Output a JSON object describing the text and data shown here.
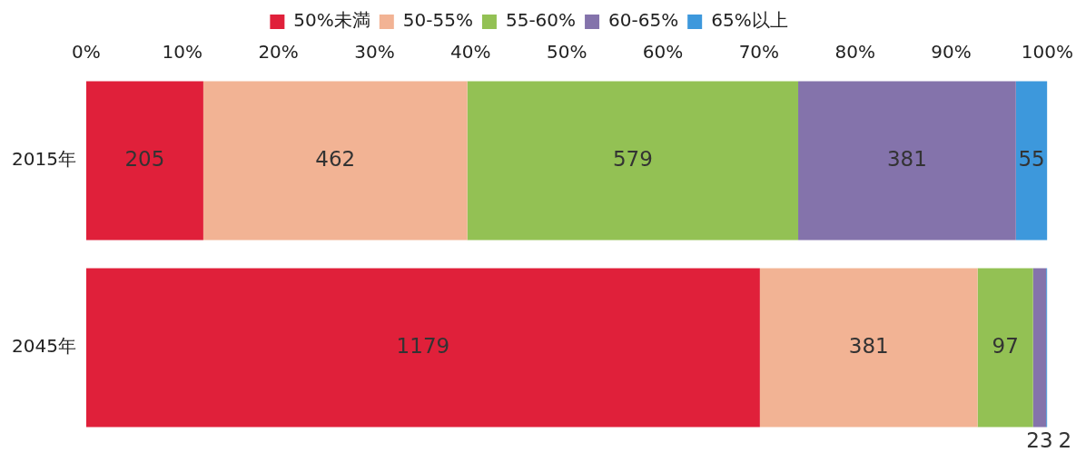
{
  "chart_data": {
    "type": "bar",
    "orientation": "horizontal",
    "stacked": true,
    "categories": [
      "2015年",
      "2045年"
    ],
    "series": [
      {
        "name": "50%未満",
        "color": "#e0203a",
        "values": [
          205,
          1179
        ]
      },
      {
        "name": "50-55%",
        "color": "#f2b394",
        "values": [
          462,
          381
        ]
      },
      {
        "name": "55-60%",
        "color": "#93c154",
        "values": [
          579,
          97
        ]
      },
      {
        "name": "60-65%",
        "color": "#8473ab",
        "values": [
          381,
          23
        ]
      },
      {
        "name": "65%以上",
        "color": "#3d98dc",
        "values": [
          55,
          2
        ]
      }
    ],
    "xlim": [
      0,
      1682
    ],
    "x2lim": [
      0,
      100
    ],
    "x2ticks": [
      {
        "value": 0,
        "label": "0%"
      },
      {
        "value": 10,
        "label": "10%"
      },
      {
        "value": 20,
        "label": "20%"
      },
      {
        "value": 30,
        "label": "30%"
      },
      {
        "value": 40,
        "label": "40%"
      },
      {
        "value": 50,
        "label": "50%"
      },
      {
        "value": 60,
        "label": "60%"
      },
      {
        "value": 70,
        "label": "70%"
      },
      {
        "value": 80,
        "label": "80%"
      },
      {
        "value": 90,
        "label": "90%"
      },
      {
        "value": 100,
        "label": "100%"
      }
    ],
    "legend": "top",
    "grid": false,
    "data_labels": true
  }
}
